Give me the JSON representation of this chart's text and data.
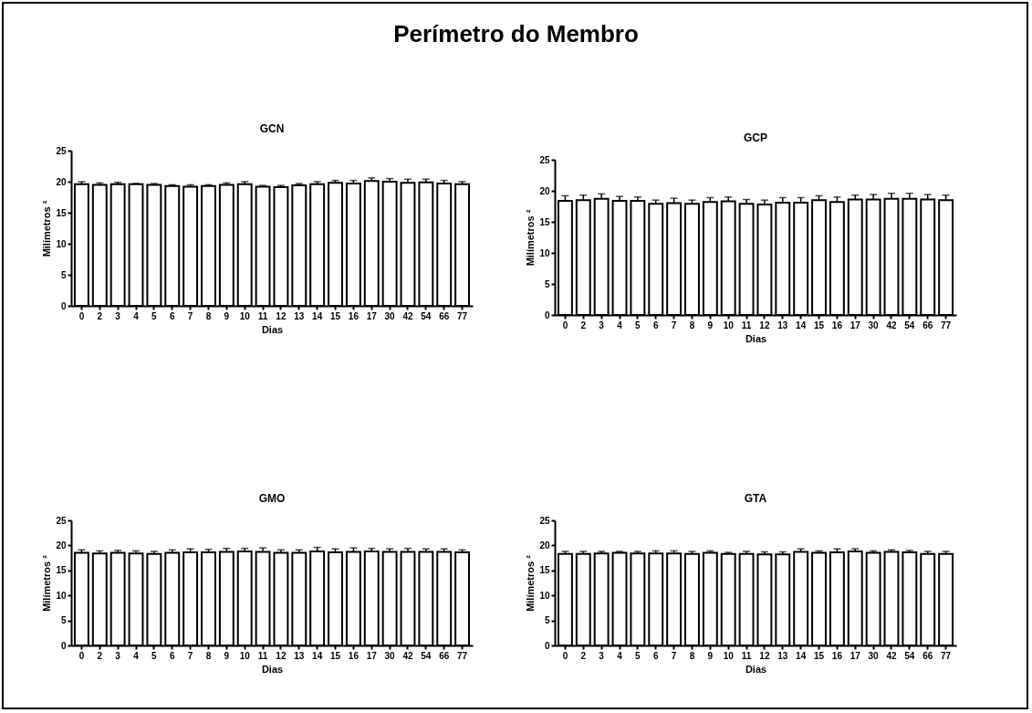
{
  "chart_data": [
    {
      "type": "other",
      "title": "Perímetro do Membro"
    },
    {
      "type": "bar",
      "title": "GCN",
      "xlabel": "Dias",
      "ylabel": "Milímetros ²",
      "categories": [
        "0",
        "2",
        "3",
        "4",
        "5",
        "6",
        "7",
        "8",
        "9",
        "10",
        "11",
        "12",
        "13",
        "14",
        "15",
        "16",
        "17",
        "30",
        "42",
        "54",
        "66",
        "77"
      ],
      "color": "#ffffff",
      "ylim": [
        0,
        25
      ],
      "yticks": [
        0,
        5,
        10,
        15,
        20,
        25
      ],
      "grid": false,
      "values": [
        19.6,
        19.5,
        19.6,
        19.6,
        19.5,
        19.3,
        19.2,
        19.3,
        19.5,
        19.6,
        19.2,
        19.1,
        19.4,
        19.6,
        19.8,
        19.7,
        20.1,
        20.0,
        19.8,
        19.9,
        19.7,
        19.6
      ],
      "errors": [
        0.4,
        0.3,
        0.3,
        0.1,
        0.2,
        0.2,
        0.3,
        0.2,
        0.3,
        0.4,
        0.2,
        0.3,
        0.3,
        0.4,
        0.4,
        0.5,
        0.5,
        0.5,
        0.6,
        0.5,
        0.5,
        0.4
      ]
    },
    {
      "type": "bar",
      "title": "GCP",
      "xlabel": "Dias",
      "ylabel": "Milímetros ²",
      "categories": [
        "0",
        "2",
        "3",
        "4",
        "5",
        "6",
        "7",
        "8",
        "9",
        "10",
        "11",
        "12",
        "13",
        "14",
        "15",
        "16",
        "17",
        "30",
        "42",
        "54",
        "66",
        "77"
      ],
      "color": "#ffffff",
      "ylim": [
        0,
        25
      ],
      "yticks": [
        0,
        5,
        10,
        15,
        20,
        25
      ],
      "grid": false,
      "values": [
        18.4,
        18.5,
        18.7,
        18.4,
        18.4,
        17.9,
        18.0,
        17.9,
        18.2,
        18.3,
        17.9,
        17.8,
        18.1,
        18.1,
        18.5,
        18.2,
        18.6,
        18.6,
        18.7,
        18.7,
        18.6,
        18.5
      ],
      "errors": [
        0.8,
        0.8,
        0.8,
        0.7,
        0.6,
        0.6,
        0.8,
        0.6,
        0.7,
        0.7,
        0.7,
        0.7,
        0.8,
        0.8,
        0.7,
        0.8,
        0.7,
        0.8,
        0.9,
        0.9,
        0.8,
        0.8
      ]
    },
    {
      "type": "bar",
      "title": "GMO",
      "xlabel": "Dias",
      "ylabel": "Milímetros ²",
      "categories": [
        "0",
        "2",
        "3",
        "4",
        "5",
        "6",
        "7",
        "8",
        "9",
        "10",
        "11",
        "12",
        "13",
        "14",
        "15",
        "16",
        "17",
        "30",
        "42",
        "54",
        "66",
        "77"
      ],
      "color": "#ffffff",
      "ylim": [
        0,
        25
      ],
      "yticks": [
        0,
        5,
        10,
        15,
        20,
        25
      ],
      "grid": false,
      "values": [
        18.5,
        18.4,
        18.5,
        18.4,
        18.3,
        18.5,
        18.6,
        18.6,
        18.7,
        18.8,
        18.7,
        18.5,
        18.5,
        18.8,
        18.6,
        18.7,
        18.8,
        18.7,
        18.7,
        18.7,
        18.7,
        18.6
      ],
      "errors": [
        0.6,
        0.5,
        0.5,
        0.5,
        0.5,
        0.6,
        0.7,
        0.6,
        0.7,
        0.6,
        0.8,
        0.6,
        0.6,
        0.8,
        0.7,
        0.8,
        0.6,
        0.6,
        0.7,
        0.6,
        0.6,
        0.5
      ]
    },
    {
      "type": "bar",
      "title": "GTA",
      "xlabel": "Dias",
      "ylabel": "Milímetros ²",
      "categories": [
        "0",
        "2",
        "3",
        "4",
        "5",
        "6",
        "7",
        "8",
        "9",
        "10",
        "11",
        "12",
        "13",
        "14",
        "15",
        "16",
        "17",
        "30",
        "42",
        "54",
        "66",
        "77"
      ],
      "color": "#ffffff",
      "ylim": [
        0,
        25
      ],
      "yticks": [
        0,
        5,
        10,
        15,
        20,
        25
      ],
      "grid": false,
      "values": [
        18.3,
        18.3,
        18.4,
        18.5,
        18.4,
        18.4,
        18.4,
        18.3,
        18.5,
        18.3,
        18.3,
        18.2,
        18.2,
        18.7,
        18.5,
        18.6,
        18.8,
        18.5,
        18.7,
        18.6,
        18.3,
        18.3
      ],
      "errors": [
        0.5,
        0.5,
        0.4,
        0.3,
        0.4,
        0.5,
        0.5,
        0.5,
        0.4,
        0.3,
        0.5,
        0.5,
        0.5,
        0.6,
        0.4,
        0.7,
        0.5,
        0.4,
        0.4,
        0.4,
        0.5,
        0.5
      ]
    }
  ]
}
